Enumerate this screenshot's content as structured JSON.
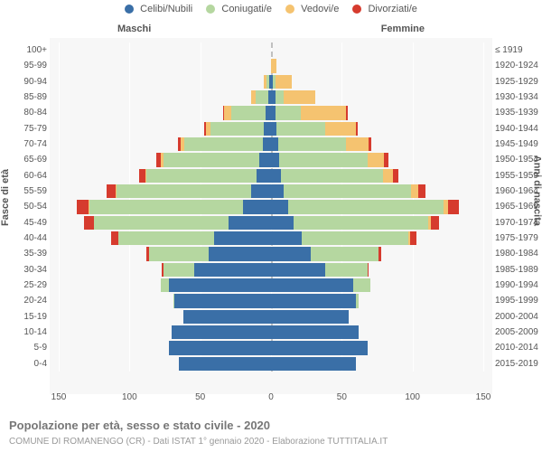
{
  "chart_type": "stacked_population_pyramid",
  "background_color": "#ffffff",
  "plot_background": "#f7f7f7",
  "grid_color": "#ffffff",
  "center_line_color": "#c0c0c0",
  "legend": {
    "items": [
      {
        "label": "Celibi/Nubili",
        "color": "#3a6fa7"
      },
      {
        "label": "Coniugati/e",
        "color": "#b5d7a0"
      },
      {
        "label": "Vedovi/e",
        "color": "#f5c370"
      },
      {
        "label": "Divorziati/e",
        "color": "#d63b2e"
      }
    ]
  },
  "side_labels": {
    "male": "Maschi",
    "female": "Femmine"
  },
  "axis_titles": {
    "left": "Fasce di età",
    "right": "Anni di nascita"
  },
  "x_axis": {
    "max": 150,
    "ticks": [
      -150,
      -100,
      -50,
      0,
      50,
      100,
      150
    ],
    "tick_labels": [
      "150",
      "100",
      "50",
      "0",
      "50",
      "100",
      "150"
    ],
    "label_fontsize": 10
  },
  "footer_title": "Popolazione per età, sesso e stato civile - 2020",
  "footer_sub": "COMUNE DI ROMANENGO (CR) - Dati ISTAT 1° gennaio 2020 - Elaborazione TUTTITALIA.IT",
  "age_groups": [
    {
      "age": "100+",
      "birth": "≤ 1919",
      "m": {
        "cel": 0,
        "con": 0,
        "ved": 0,
        "div": 0
      },
      "f": {
        "cel": 0,
        "con": 0,
        "ved": 0,
        "div": 0
      }
    },
    {
      "age": "95-99",
      "birth": "1920-1924",
      "m": {
        "cel": 0,
        "con": 0,
        "ved": 0,
        "div": 0
      },
      "f": {
        "cel": 0,
        "con": 0,
        "ved": 4,
        "div": 0
      }
    },
    {
      "age": "90-94",
      "birth": "1925-1929",
      "m": {
        "cel": 1,
        "con": 2,
        "ved": 2,
        "div": 0
      },
      "f": {
        "cel": 1,
        "con": 2,
        "ved": 12,
        "div": 0
      }
    },
    {
      "age": "85-89",
      "birth": "1930-1934",
      "m": {
        "cel": 2,
        "con": 9,
        "ved": 3,
        "div": 0
      },
      "f": {
        "cel": 3,
        "con": 6,
        "ved": 22,
        "div": 0
      }
    },
    {
      "age": "80-84",
      "birth": "1935-1939",
      "m": {
        "cel": 4,
        "con": 24,
        "ved": 5,
        "div": 1
      },
      "f": {
        "cel": 3,
        "con": 18,
        "ved": 32,
        "div": 1
      }
    },
    {
      "age": "75-79",
      "birth": "1940-1944",
      "m": {
        "cel": 5,
        "con": 38,
        "ved": 3,
        "div": 1
      },
      "f": {
        "cel": 4,
        "con": 34,
        "ved": 22,
        "div": 1
      }
    },
    {
      "age": "70-74",
      "birth": "1945-1949",
      "m": {
        "cel": 6,
        "con": 55,
        "ved": 3,
        "div": 2
      },
      "f": {
        "cel": 5,
        "con": 48,
        "ved": 16,
        "div": 2
      }
    },
    {
      "age": "65-69",
      "birth": "1950-1954",
      "m": {
        "cel": 8,
        "con": 68,
        "ved": 2,
        "div": 3
      },
      "f": {
        "cel": 6,
        "con": 62,
        "ved": 12,
        "div": 3
      }
    },
    {
      "age": "60-64",
      "birth": "1955-1959",
      "m": {
        "cel": 10,
        "con": 78,
        "ved": 1,
        "div": 4
      },
      "f": {
        "cel": 7,
        "con": 72,
        "ved": 7,
        "div": 4
      }
    },
    {
      "age": "55-59",
      "birth": "1960-1964",
      "m": {
        "cel": 14,
        "con": 95,
        "ved": 1,
        "div": 6
      },
      "f": {
        "cel": 9,
        "con": 90,
        "ved": 5,
        "div": 5
      }
    },
    {
      "age": "50-54",
      "birth": "1965-1969",
      "m": {
        "cel": 20,
        "con": 108,
        "ved": 1,
        "div": 8
      },
      "f": {
        "cel": 12,
        "con": 110,
        "ved": 3,
        "div": 8
      }
    },
    {
      "age": "45-49",
      "birth": "1970-1974",
      "m": {
        "cel": 30,
        "con": 95,
        "ved": 0,
        "div": 7
      },
      "f": {
        "cel": 16,
        "con": 95,
        "ved": 2,
        "div": 6
      }
    },
    {
      "age": "40-44",
      "birth": "1975-1979",
      "m": {
        "cel": 40,
        "con": 68,
        "ved": 0,
        "div": 5
      },
      "f": {
        "cel": 22,
        "con": 75,
        "ved": 1,
        "div": 5
      }
    },
    {
      "age": "35-39",
      "birth": "1980-1984",
      "m": {
        "cel": 44,
        "con": 42,
        "ved": 0,
        "div": 2
      },
      "f": {
        "cel": 28,
        "con": 48,
        "ved": 0,
        "div": 2
      }
    },
    {
      "age": "30-34",
      "birth": "1985-1989",
      "m": {
        "cel": 54,
        "con": 22,
        "ved": 0,
        "div": 1
      },
      "f": {
        "cel": 38,
        "con": 30,
        "ved": 0,
        "div": 1
      }
    },
    {
      "age": "25-29",
      "birth": "1990-1994",
      "m": {
        "cel": 72,
        "con": 6,
        "ved": 0,
        "div": 0
      },
      "f": {
        "cel": 58,
        "con": 12,
        "ved": 0,
        "div": 0
      }
    },
    {
      "age": "20-24",
      "birth": "1995-1999",
      "m": {
        "cel": 68,
        "con": 1,
        "ved": 0,
        "div": 0
      },
      "f": {
        "cel": 60,
        "con": 2,
        "ved": 0,
        "div": 0
      }
    },
    {
      "age": "15-19",
      "birth": "2000-2004",
      "m": {
        "cel": 62,
        "con": 0,
        "ved": 0,
        "div": 0
      },
      "f": {
        "cel": 55,
        "con": 0,
        "ved": 0,
        "div": 0
      }
    },
    {
      "age": "10-14",
      "birth": "2005-2009",
      "m": {
        "cel": 70,
        "con": 0,
        "ved": 0,
        "div": 0
      },
      "f": {
        "cel": 62,
        "con": 0,
        "ved": 0,
        "div": 0
      }
    },
    {
      "age": "5-9",
      "birth": "2010-2014",
      "m": {
        "cel": 72,
        "con": 0,
        "ved": 0,
        "div": 0
      },
      "f": {
        "cel": 68,
        "con": 0,
        "ved": 0,
        "div": 0
      }
    },
    {
      "age": "0-4",
      "birth": "2015-2019",
      "m": {
        "cel": 65,
        "con": 0,
        "ved": 0,
        "div": 0
      },
      "f": {
        "cel": 60,
        "con": 0,
        "ved": 0,
        "div": 0
      }
    }
  ],
  "colors": {
    "cel": "#3a6fa7",
    "con": "#b5d7a0",
    "ved": "#f5c370",
    "div": "#d63b2e"
  }
}
